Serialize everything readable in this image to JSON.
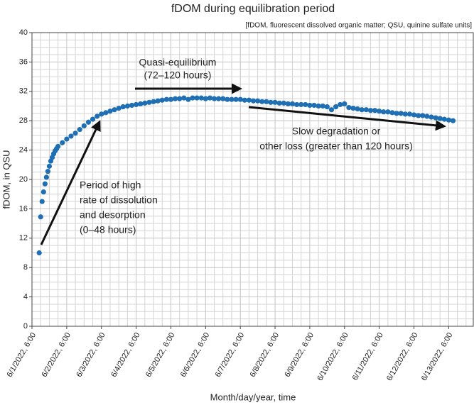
{
  "chart_data": {
    "type": "scatter",
    "title": "fDOM during equilibration period",
    "subtitle": "[fDOM, fluorescent dissolved organic matter; QSU, quinine sulfate units]",
    "x_label": "Month/day/year, time",
    "y_label": "fDOM, in QSU",
    "color": "#1f6fb4",
    "grid": true,
    "x": [
      "2022-06-01T11:00",
      "2022-06-01T12:00",
      "2022-06-01T13:00",
      "2022-06-01T14:00",
      "2022-06-01T15:00",
      "2022-06-01T16:00",
      "2022-06-01T17:00",
      "2022-06-01T18:00",
      "2022-06-01T19:00",
      "2022-06-01T20:00",
      "2022-06-01T21:00",
      "2022-06-01T22:00",
      "2022-06-01T23:00",
      "2022-06-02T00:00",
      "2022-06-02T03:00",
      "2022-06-02T06:00",
      "2022-06-02T09:00",
      "2022-06-02T12:00",
      "2022-06-02T15:00",
      "2022-06-02T18:00",
      "2022-06-02T21:00",
      "2022-06-03T00:00",
      "2022-06-03T03:00",
      "2022-06-03T06:00",
      "2022-06-03T09:00",
      "2022-06-03T12:00",
      "2022-06-03T15:00",
      "2022-06-03T18:00",
      "2022-06-03T21:00",
      "2022-06-04T00:00",
      "2022-06-04T03:00",
      "2022-06-04T06:00",
      "2022-06-04T09:00",
      "2022-06-04T12:00",
      "2022-06-04T15:00",
      "2022-06-04T18:00",
      "2022-06-04T21:00",
      "2022-06-05T00:00",
      "2022-06-05T03:00",
      "2022-06-05T06:00",
      "2022-06-05T09:00",
      "2022-06-05T12:00",
      "2022-06-05T15:00",
      "2022-06-05T18:00",
      "2022-06-05T21:00",
      "2022-06-06T00:00",
      "2022-06-06T03:00",
      "2022-06-06T06:00",
      "2022-06-06T09:00",
      "2022-06-06T12:00",
      "2022-06-06T15:00",
      "2022-06-06T18:00",
      "2022-06-06T21:00",
      "2022-06-07T00:00",
      "2022-06-07T03:00",
      "2022-06-07T06:00",
      "2022-06-07T09:00",
      "2022-06-07T12:00",
      "2022-06-07T15:00",
      "2022-06-07T18:00",
      "2022-06-07T21:00",
      "2022-06-08T00:00",
      "2022-06-08T03:00",
      "2022-06-08T06:00",
      "2022-06-08T09:00",
      "2022-06-08T12:00",
      "2022-06-08T15:00",
      "2022-06-08T18:00",
      "2022-06-08T21:00",
      "2022-06-09T00:00",
      "2022-06-09T03:00",
      "2022-06-09T06:00",
      "2022-06-09T09:00",
      "2022-06-09T12:00",
      "2022-06-09T15:00",
      "2022-06-09T18:00",
      "2022-06-09T21:00",
      "2022-06-10T00:00",
      "2022-06-10T03:00",
      "2022-06-10T06:00",
      "2022-06-10T09:00",
      "2022-06-10T12:00",
      "2022-06-10T15:00",
      "2022-06-10T18:00",
      "2022-06-10T21:00",
      "2022-06-11T00:00",
      "2022-06-11T03:00",
      "2022-06-11T06:00",
      "2022-06-11T09:00",
      "2022-06-11T12:00",
      "2022-06-11T15:00",
      "2022-06-11T18:00",
      "2022-06-11T21:00",
      "2022-06-12T00:00",
      "2022-06-12T03:00",
      "2022-06-12T06:00",
      "2022-06-12T09:00",
      "2022-06-12T12:00",
      "2022-06-12T15:00",
      "2022-06-12T18:00",
      "2022-06-12T21:00",
      "2022-06-13T00:00",
      "2022-06-13T03:00",
      "2022-06-13T06:00",
      "2022-06-13T09:00"
    ],
    "values": [
      10.0,
      14.9,
      17.0,
      18.3,
      19.4,
      20.3,
      21.1,
      21.8,
      22.5,
      23.0,
      23.5,
      23.9,
      24.2,
      24.5,
      25.0,
      25.5,
      25.9,
      26.3,
      26.8,
      27.3,
      27.8,
      28.2,
      28.6,
      28.9,
      29.1,
      29.3,
      29.5,
      29.7,
      29.9,
      30.0,
      30.1,
      30.2,
      30.3,
      30.4,
      30.5,
      30.6,
      30.7,
      30.8,
      30.9,
      30.9,
      31.0,
      31.0,
      31.1,
      30.9,
      31.1,
      31.1,
      31.1,
      31.0,
      31.1,
      31.0,
      31.0,
      31.0,
      30.9,
      30.9,
      30.9,
      30.9,
      30.8,
      30.8,
      30.7,
      30.7,
      30.6,
      30.6,
      30.5,
      30.5,
      30.4,
      30.4,
      30.3,
      30.3,
      30.2,
      30.2,
      30.2,
      30.1,
      30.1,
      30.0,
      30.0,
      29.9,
      29.5,
      29.9,
      30.2,
      30.3,
      29.8,
      29.7,
      29.6,
      29.5,
      29.5,
      29.4,
      29.4,
      29.3,
      29.2,
      29.2,
      29.1,
      29.0,
      29.0,
      28.9,
      28.9,
      28.8,
      28.7,
      28.7,
      28.6,
      28.5,
      28.4,
      28.3,
      28.2,
      28.1,
      28.0
    ],
    "xlim": [
      "2022-06-01T06:00",
      "2022-06-13T23:00"
    ],
    "xticks": [
      {
        "value": "2022-06-01T06:00",
        "label": "6/1/2022, 6:00"
      },
      {
        "value": "2022-06-02T06:00",
        "label": "6/2/2022, 6:00"
      },
      {
        "value": "2022-06-03T06:00",
        "label": "6/3/2022, 6:00"
      },
      {
        "value": "2022-06-04T06:00",
        "label": "6/4/2022, 6:00"
      },
      {
        "value": "2022-06-05T06:00",
        "label": "6/5/2022, 6:00"
      },
      {
        "value": "2022-06-06T06:00",
        "label": "6/6/2022, 6:00"
      },
      {
        "value": "2022-06-07T06:00",
        "label": "6/7/2022, 6:00"
      },
      {
        "value": "2022-06-08T06:00",
        "label": "6/8/2022, 6:00"
      },
      {
        "value": "2022-06-09T06:00",
        "label": "6/9/2022, 6:00"
      },
      {
        "value": "2022-06-10T06:00",
        "label": "6/10/2022, 6:00"
      },
      {
        "value": "2022-06-11T06:00",
        "label": "6/11/2022, 6:00"
      },
      {
        "value": "2022-06-12T06:00",
        "label": "6/12/2022, 6:00"
      },
      {
        "value": "2022-06-13T06:00",
        "label": "6/13/2022, 6:00"
      }
    ],
    "ylim": [
      0,
      40
    ],
    "yticks": [
      0,
      4,
      8,
      12,
      16,
      20,
      24,
      28,
      32,
      36,
      40
    ],
    "annotations": [
      {
        "lines": [
          "Quasi-equilibrium",
          "(72–120 hours)"
        ]
      },
      {
        "lines": [
          "Slow degradation or",
          "other loss (greater than 120 hours)"
        ]
      },
      {
        "lines": [
          "Period of high",
          "rate of dissolution",
          "and desorption",
          "(0–48 hours)"
        ]
      }
    ]
  }
}
